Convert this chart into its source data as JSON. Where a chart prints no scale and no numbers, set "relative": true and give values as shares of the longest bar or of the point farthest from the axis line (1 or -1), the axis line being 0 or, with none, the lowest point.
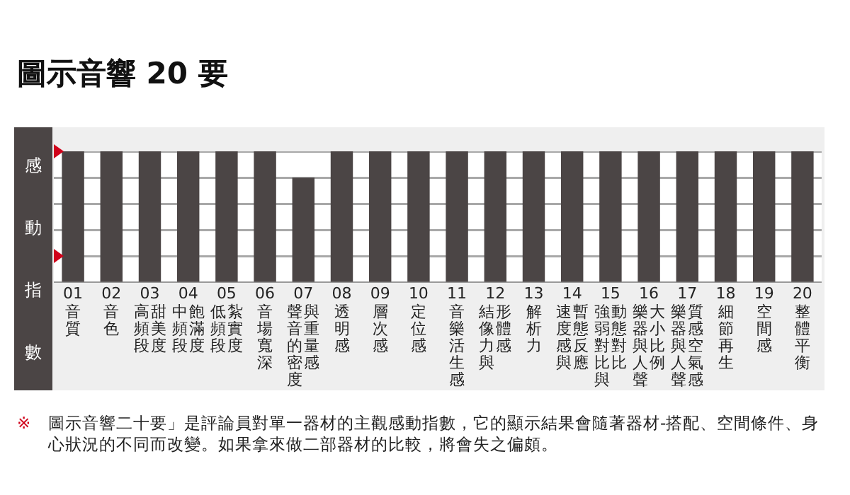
{
  "chart_data": {
    "type": "bar",
    "title": "圖示音響 20 要",
    "ylabel": "感動指數",
    "categories": [
      "01\n音質",
      "02\n音色",
      "03\n高頻段甜美度",
      "04\n中頻段飽滿度",
      "05\n低頻段紮實度",
      "06\n音場寬深",
      "07\n聲音的密度與重量感",
      "08\n透明感",
      "09\n層次感",
      "10\n定位感",
      "11\n音樂活生感",
      "12\n結像力與形體感",
      "13\n解析力",
      "14\n速度感與暫態反應",
      "15\n強弱對比與動態對比",
      "16\n樂器與人聲大小比例",
      "17\n樂器與人聲質感空氣感",
      "18\n細節再生",
      "19\n空間感",
      "20\n整體平衡"
    ],
    "values": [
      1,
      1,
      1,
      1,
      1,
      1,
      0.8,
      1,
      1,
      1,
      1,
      1,
      1,
      1,
      1,
      1,
      1,
      1,
      1,
      1
    ],
    "color": "#4b4545",
    "relative": true,
    "grid": "y",
    "annotations": [
      "※ 圖示音響二十要」是評論員對單一器材的主觀感動指數，它的顯示結果會隨著器材-搭配、空間條件、身心狀況的不同而改變。如果拿來做二部器材的比較，將會失之偏頗。"
    ]
  }
}
